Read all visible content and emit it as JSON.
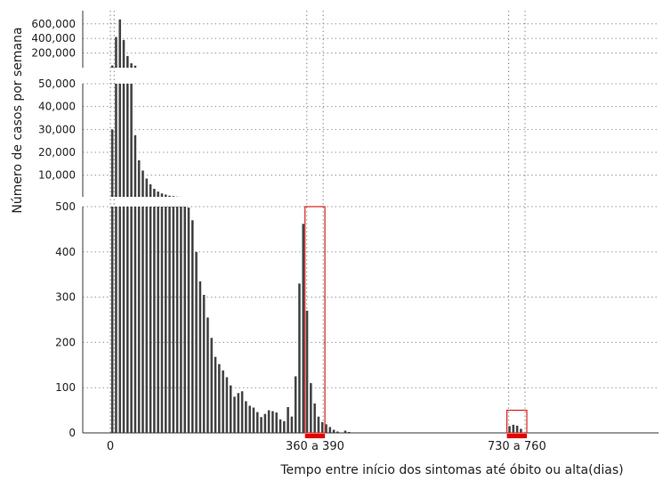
{
  "chart_data": {
    "type": "bar",
    "ylabel": "Número de casos por semana",
    "xlabel": "Tempo entre início dos sintomas até óbito ou alta(dias)",
    "x_unit": "dias",
    "bin_width_days": 7,
    "bar_start_day": [
      0,
      7,
      14,
      21,
      28,
      35,
      42,
      49,
      56,
      63,
      70,
      77,
      84,
      91,
      98,
      105,
      112,
      119,
      126,
      133,
      140,
      147,
      154,
      161,
      168,
      175,
      182,
      189,
      196,
      203,
      210,
      217,
      224,
      231,
      238,
      245,
      252,
      259,
      266,
      273,
      280,
      287,
      294,
      301,
      308,
      315,
      322,
      329,
      336,
      343,
      350,
      357,
      364,
      371,
      378,
      385,
      392,
      399,
      406,
      413,
      420,
      427,
      434,
      441,
      448,
      455,
      462,
      469,
      476,
      483,
      490,
      497,
      504,
      511,
      518,
      525,
      532,
      539,
      546,
      553,
      560,
      567,
      574,
      581,
      588,
      595,
      602,
      609,
      616,
      623,
      630,
      637,
      644,
      651,
      658,
      665,
      672,
      679,
      686,
      693,
      700,
      707,
      714,
      721,
      728,
      735,
      742,
      749
    ],
    "values": [
      30000,
      420000,
      660000,
      380000,
      160000,
      60000,
      27500,
      16500,
      12000,
      8500,
      6000,
      4000,
      2800,
      2000,
      1500,
      1000,
      800,
      600,
      530,
      510,
      498,
      470,
      400,
      335,
      305,
      255,
      210,
      168,
      152,
      138,
      123,
      105,
      80,
      88,
      92,
      70,
      60,
      56,
      46,
      35,
      42,
      50,
      48,
      45,
      30,
      26,
      57,
      36,
      125,
      330,
      462,
      270,
      110,
      65,
      36,
      24,
      19,
      13,
      7,
      3,
      0,
      5,
      2,
      1,
      0,
      0,
      0,
      0,
      0,
      0,
      0,
      0,
      0,
      0,
      0,
      0,
      0,
      0,
      0,
      0,
      0,
      0,
      0,
      0,
      0,
      0,
      0,
      0,
      0,
      0,
      0,
      0,
      0,
      0,
      0,
      0,
      0,
      0,
      0,
      0,
      0,
      0,
      0,
      0,
      15,
      18,
      16,
      9
    ],
    "x_ticks": [
      {
        "value": 0,
        "label": "0"
      },
      {
        "value": 375,
        "label": "360 a 390"
      },
      {
        "value": 745,
        "label": "730 a 760"
      }
    ],
    "panels": [
      {
        "ylim": [
          0,
          780000
        ],
        "ticks": [
          200000,
          400000,
          600000
        ],
        "tick_labels": [
          "200,000",
          "400,000",
          "600,000"
        ]
      },
      {
        "ylim": [
          500,
          50000
        ],
        "ticks": [
          10000,
          20000,
          30000,
          40000,
          50000
        ],
        "tick_labels": [
          "10,000",
          "20,000",
          "30,000",
          "40,000",
          "50,000"
        ]
      },
      {
        "ylim": [
          0,
          500
        ],
        "ticks": [
          0,
          100,
          200,
          300,
          400,
          500
        ],
        "tick_labels": [
          "0",
          "100",
          "200",
          "300",
          "400",
          "500"
        ]
      }
    ],
    "reference_lines_days": [
      0,
      7,
      360,
      390,
      730,
      760
    ],
    "highlight_ranges": [
      {
        "label": "360 a 390",
        "start_day": 360,
        "end_day": 390,
        "ymax": 500,
        "color": "#e00000"
      },
      {
        "label": "730 a 760",
        "start_day": 730,
        "end_day": 760,
        "ymax": 50,
        "color": "#e00000"
      }
    ],
    "legend": "none",
    "grid": true
  }
}
